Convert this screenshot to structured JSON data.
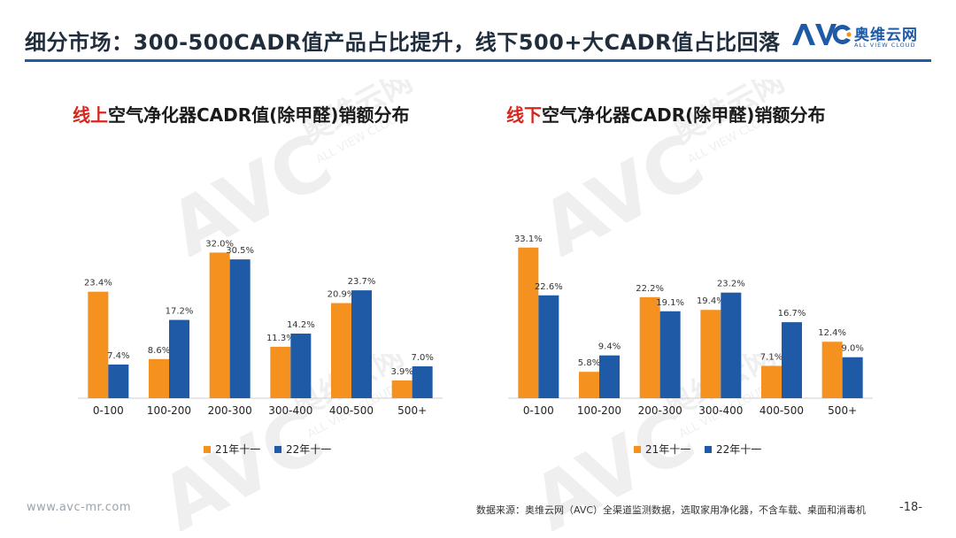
{
  "header": {
    "title": "细分市场：300-500CADR值产品占比提升，线下500+大CADR值占比回落"
  },
  "logo": {
    "mark": "AVC",
    "cn": "奥维云网",
    "en": "ALL VIEW CLOUD",
    "color": "#1f5aa6"
  },
  "watermark": {
    "mark": "AVC",
    "cn": "奥维云网",
    "en": "ALL VIEW CLOUD"
  },
  "colors": {
    "series_21": "#f5911e",
    "series_22": "#1f5aa6",
    "accent_red": "#d8261c",
    "rule": "#1f5aa6"
  },
  "left_chart": {
    "title_highlight": "线上",
    "title_rest": "空气净化器CADR值(除甲醛)销额分布"
  },
  "right_chart": {
    "title_highlight": "线下",
    "title_rest": "空气净化器CADR(除甲醛)销额分布"
  },
  "chart_data": [
    {
      "type": "bar",
      "title": "线上空气净化器CADR值(除甲醛)销额分布",
      "categories": [
        "0-100",
        "100-200",
        "200-300",
        "300-400",
        "400-500",
        "500+"
      ],
      "series": [
        {
          "name": "21年十一",
          "values": [
            23.4,
            8.6,
            32.0,
            11.3,
            20.9,
            3.9
          ],
          "labels": [
            "23.4%",
            "8.6%",
            "32.0%",
            "11.3%",
            "20.9%",
            "3.9%"
          ]
        },
        {
          "name": "22年十一",
          "values": [
            7.4,
            17.2,
            30.5,
            14.2,
            23.7,
            7.0
          ],
          "labels": [
            "7.4%",
            "17.2%",
            "30.5%",
            "14.2%",
            "23.7%",
            "7.0%"
          ]
        }
      ],
      "ylim": [
        0,
        35
      ],
      "grid": false,
      "legend": "bottom"
    },
    {
      "type": "bar",
      "title": "线下空气净化器CADR(除甲醛)销额分布",
      "categories": [
        "0-100",
        "100-200",
        "200-300",
        "300-400",
        "400-500",
        "500+"
      ],
      "series": [
        {
          "name": "21年十一",
          "values": [
            33.1,
            5.8,
            22.2,
            19.4,
            7.1,
            12.4
          ],
          "labels": [
            "33.1%",
            "5.8%",
            "22.2%",
            "19.4%",
            "7.1%",
            "12.4%"
          ]
        },
        {
          "name": "22年十一",
          "values": [
            22.6,
            9.4,
            19.1,
            23.2,
            16.7,
            9.0
          ],
          "labels": [
            "22.6%",
            "9.4%",
            "19.1%",
            "23.2%",
            "16.7%",
            "9.0%"
          ]
        }
      ],
      "ylim": [
        0,
        35
      ],
      "grid": false,
      "legend": "bottom"
    }
  ],
  "footer": {
    "url": "www.avc-mr.com",
    "source": "数据来源：奥维云网（AVC）全渠道监测数据，选取家用净化器，不含车载、桌面和消毒机",
    "page": "-18-"
  }
}
